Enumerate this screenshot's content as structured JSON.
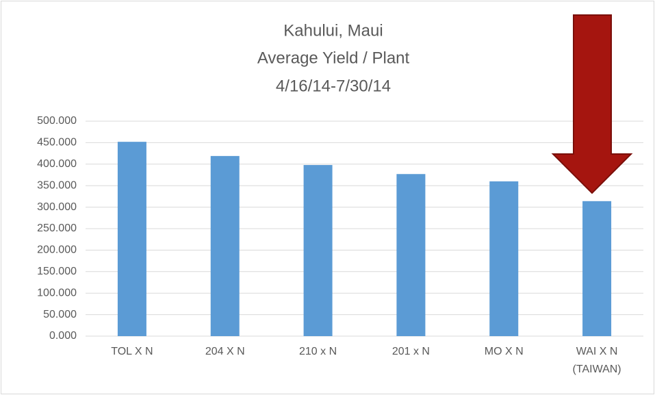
{
  "chart_data": {
    "type": "bar",
    "title": [
      "Kahului, Maui",
      "Average Yield / Plant",
      "4/16/14-7/30/14"
    ],
    "categories": [
      "TOL X N",
      "204 X N",
      "210 x N",
      "201 x N",
      "MO X N",
      "WAI X N (TAIWAN)"
    ],
    "values": [
      452,
      419,
      398,
      377,
      360,
      314
    ],
    "color": "#5b9bd5",
    "ylim": [
      0,
      500
    ],
    "yticks": [
      {
        "value": 0,
        "label": "0.000"
      },
      {
        "value": 50,
        "label": "50.000"
      },
      {
        "value": 100,
        "label": "100.000"
      },
      {
        "value": 150,
        "label": "150.000"
      },
      {
        "value": 200,
        "label": "200.000"
      },
      {
        "value": 250,
        "label": "250.000"
      },
      {
        "value": 300,
        "label": "300.000"
      },
      {
        "value": 350,
        "label": "350.000"
      },
      {
        "value": 400,
        "label": "400.000"
      },
      {
        "value": 450,
        "label": "450.000"
      },
      {
        "value": 500,
        "label": "500.000"
      }
    ],
    "grid": true
  }
}
